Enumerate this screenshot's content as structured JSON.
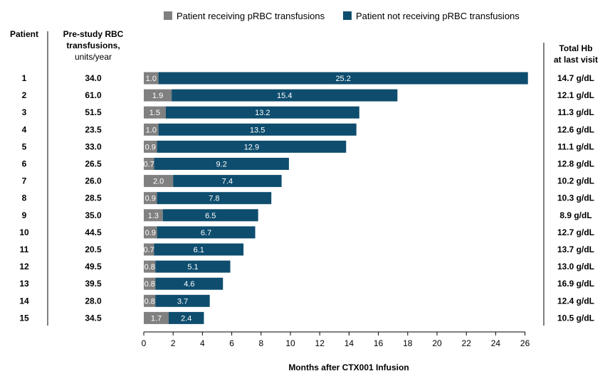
{
  "chart_data": {
    "type": "bar",
    "orientation": "horizontal",
    "stacked": true,
    "legend": {
      "placement": "top",
      "items": [
        {
          "label": "Patient receiving pRBC transfusions",
          "color": "#808080"
        },
        {
          "label": "Patient not receiving pRBC transfusions",
          "color": "#0e4d6e"
        }
      ]
    },
    "headers": {
      "patient": "Patient",
      "pre_study_line1": "Pre-study RBC",
      "pre_study_line2": "transfusions,",
      "pre_study_line3": "units/year",
      "total_hb_line1": "Total Hb",
      "total_hb_line2": "at last visit"
    },
    "patients": [
      "1",
      "2",
      "3",
      "4",
      "5",
      "6",
      "7",
      "8",
      "9",
      "10",
      "11",
      "12",
      "13",
      "14",
      "15"
    ],
    "pre_study": [
      "34.0",
      "61.0",
      "51.5",
      "23.5",
      "33.0",
      "26.5",
      "26.0",
      "28.5",
      "35.0",
      "44.5",
      "20.5",
      "49.5",
      "39.5",
      "28.0",
      "34.5"
    ],
    "total_hb": [
      "14.7 g/dL",
      "12.1 g/dL",
      "11.3 g/dL",
      "12.6 g/dL",
      "11.1 g/dL",
      "12.8 g/dL",
      "10.2 g/dL",
      "10.3 g/dL",
      "8.9 g/dL",
      "12.7 g/dL",
      "13.7 g/dL",
      "13.0 g/dL",
      "16.9 g/dL",
      "12.4 g/dL",
      "10.5 g/dL"
    ],
    "series": [
      {
        "name": "Patient receiving pRBC transfusions",
        "color": "#808080",
        "values": [
          1.0,
          1.9,
          1.5,
          1.0,
          0.9,
          0.7,
          2.0,
          0.9,
          1.3,
          0.9,
          0.7,
          0.8,
          0.8,
          0.8,
          1.7
        ],
        "labels": [
          "1.0",
          "1.9",
          "1.5",
          "1.0",
          "0.9",
          "0.7",
          "2.0",
          "0.9",
          "1.3",
          "0.9",
          "0.7",
          "0.8",
          "0.8",
          "0.8",
          "1.7"
        ]
      },
      {
        "name": "Patient not receiving pRBC transfusions",
        "color": "#0e4d6e",
        "values": [
          25.2,
          15.4,
          13.2,
          13.5,
          12.9,
          9.2,
          7.4,
          7.8,
          6.5,
          6.7,
          6.1,
          5.1,
          4.6,
          3.7,
          2.4
        ],
        "labels": [
          "25.2",
          "15.4",
          "13.2",
          "13.5",
          "12.9",
          "9.2",
          "7.4",
          "7.8",
          "6.5",
          "6.7",
          "6.1",
          "5.1",
          "4.6",
          "3.7",
          "2.4"
        ]
      }
    ],
    "xlim": [
      0,
      26
    ],
    "xticks": [
      "0",
      "2",
      "4",
      "6",
      "8",
      "10",
      "12",
      "14",
      "16",
      "18",
      "20",
      "22",
      "24",
      "26"
    ],
    "xlabel": "Months after CTX001 Infusion"
  }
}
